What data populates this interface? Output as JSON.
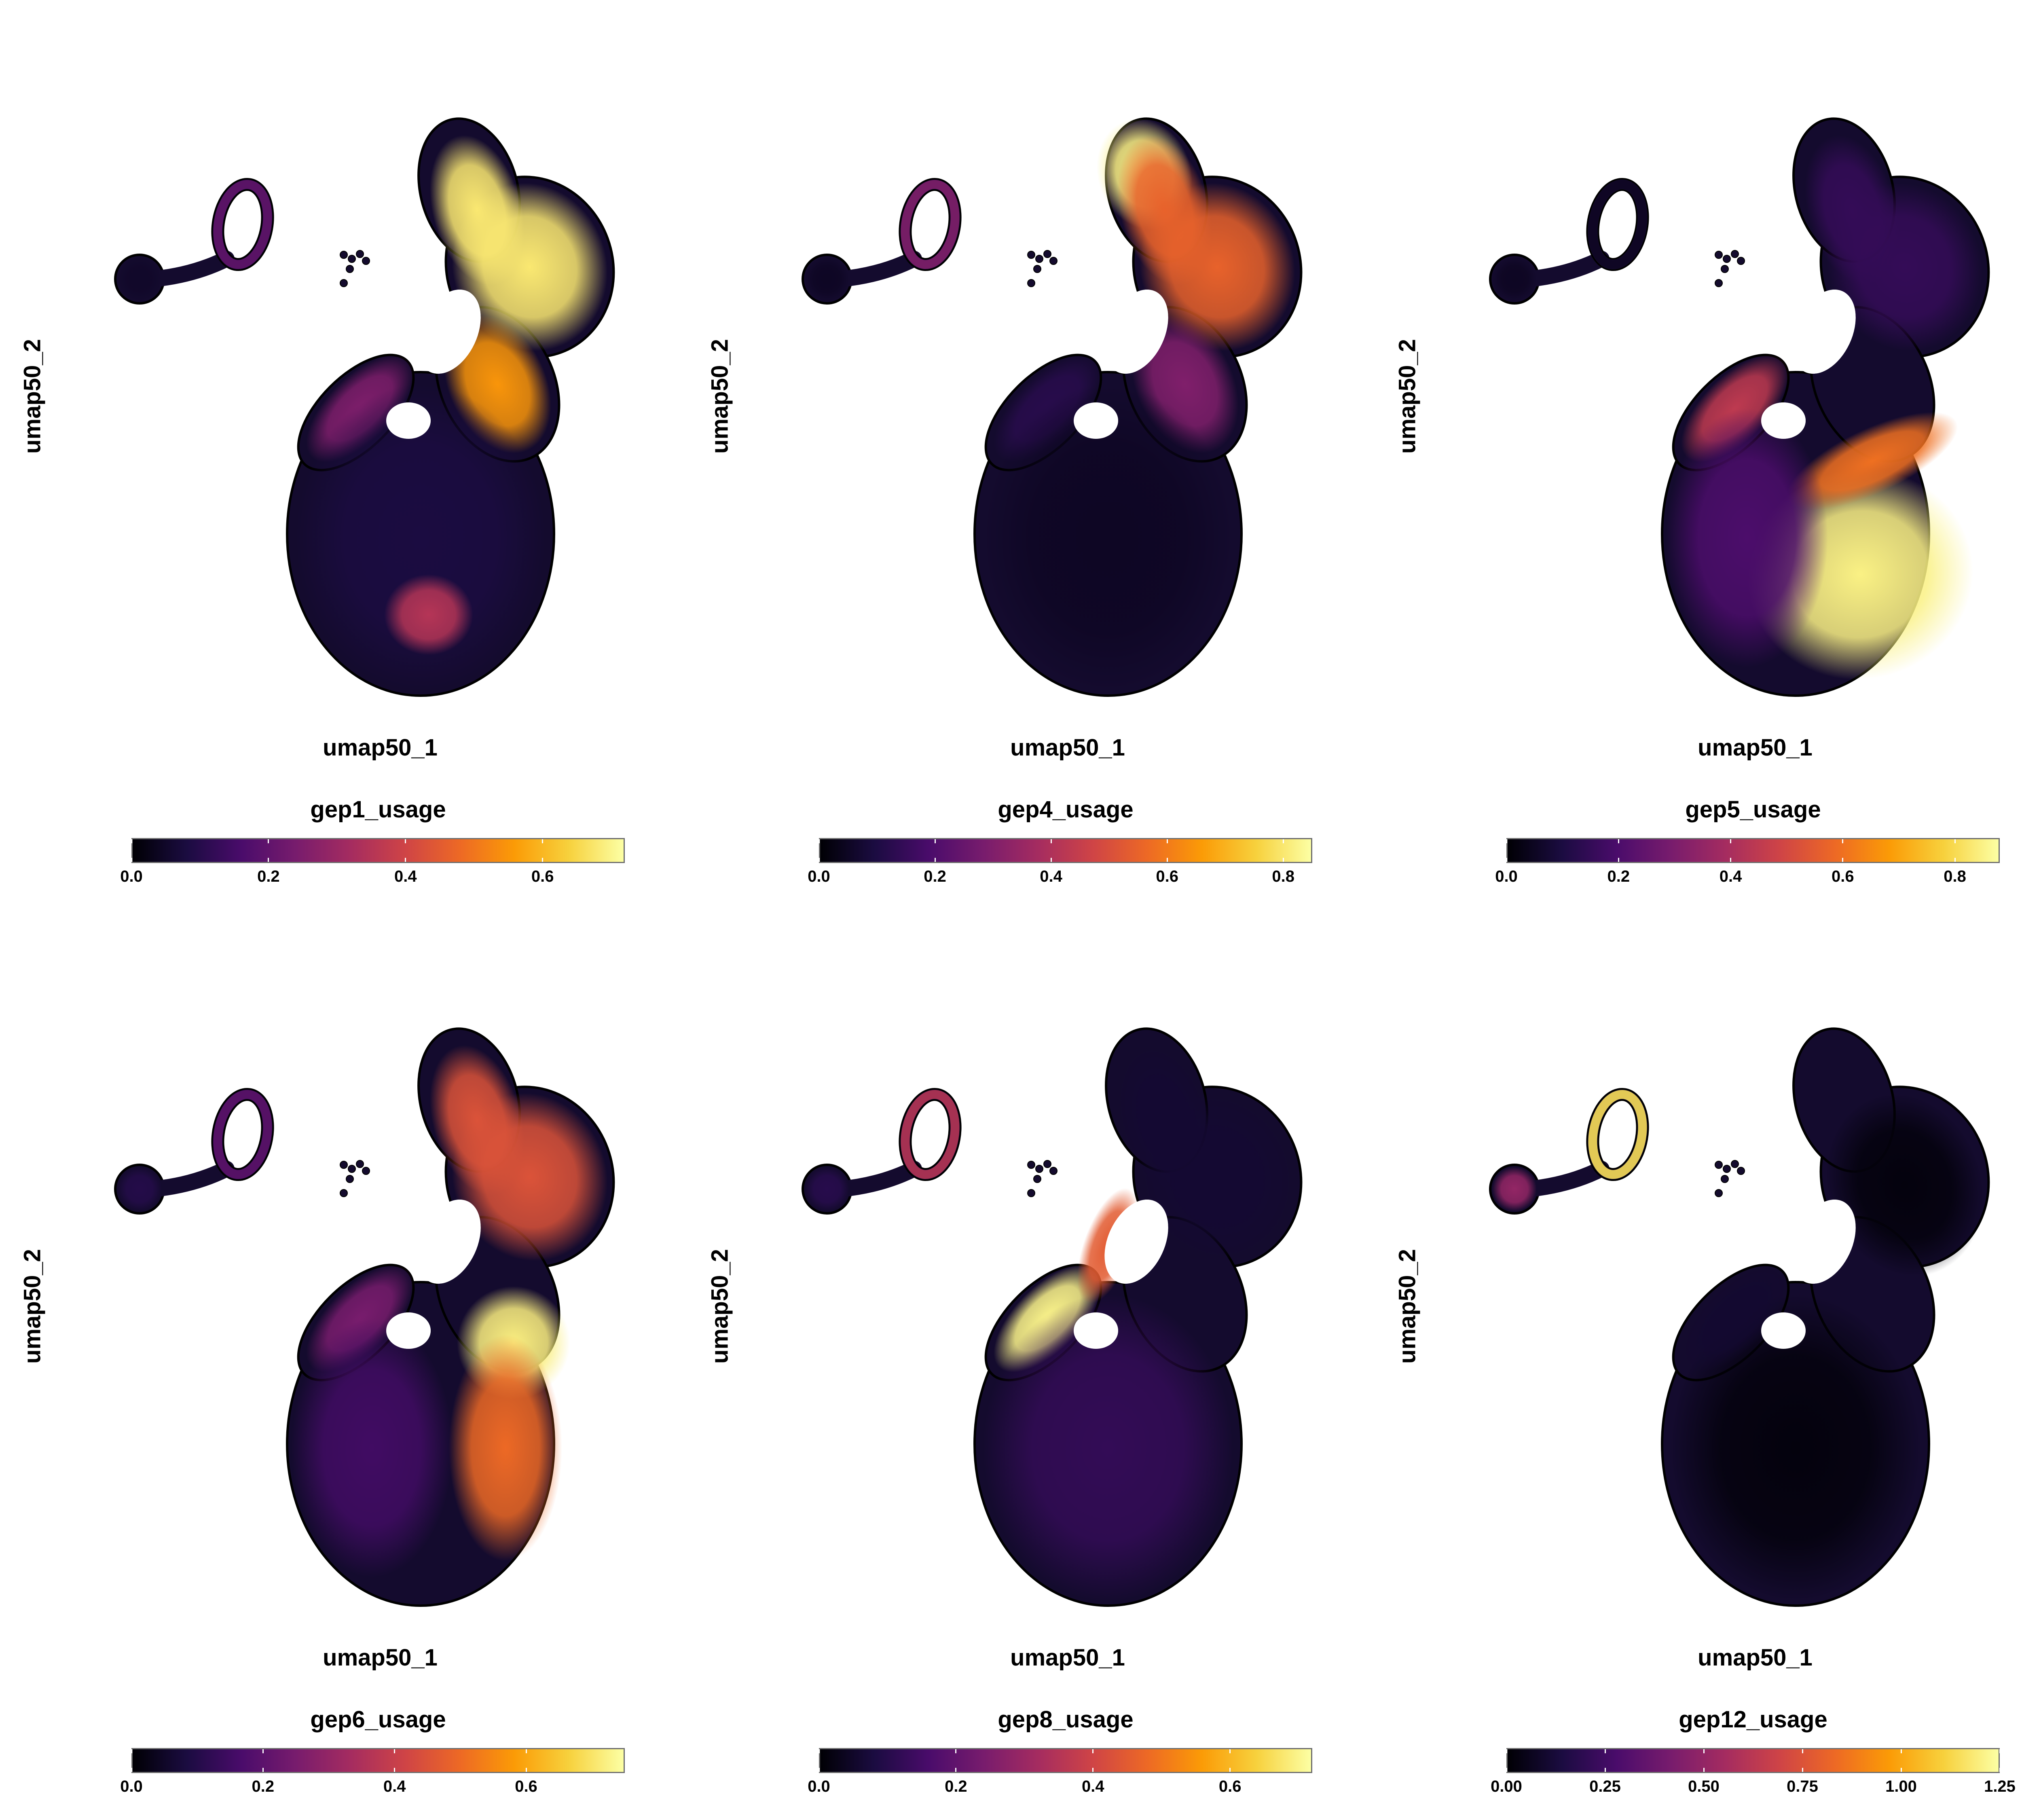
{
  "colormap": {
    "name": "inferno",
    "stops": [
      "#000004",
      "#1b0c41",
      "#4a0c6b",
      "#781c6d",
      "#a52c60",
      "#cf4446",
      "#ed6925",
      "#fb9b06",
      "#f7d13d",
      "#fcffa4"
    ]
  },
  "chart_data": [
    {
      "type": "scatter",
      "title": "",
      "xlabel": "umap50_1",
      "ylabel": "umap50_2",
      "colorbar_title": "gep1_usage",
      "color_range": [
        0,
        0.72
      ],
      "colorbar_ticks": [
        "0.0",
        "0.2",
        "0.4",
        "0.6"
      ],
      "colorbar_tick_values": [
        0.0,
        0.2,
        0.4,
        0.6
      ],
      "grid": false,
      "legend_position": "bottom",
      "regions": [
        {
          "region": "upper-right lobe",
          "usage": 0.68
        },
        {
          "region": "upper lobe neck",
          "usage": 0.55
        },
        {
          "region": "left arm",
          "usage": 0.25
        },
        {
          "region": "lower body",
          "usage": 0.08
        },
        {
          "region": "bottom tip",
          "usage": 0.35
        },
        {
          "region": "small ring cluster",
          "usage": 0.2
        },
        {
          "region": "round cluster",
          "usage": 0.05
        }
      ]
    },
    {
      "type": "scatter",
      "title": "",
      "xlabel": "umap50_1",
      "ylabel": "umap50_2",
      "colorbar_title": "gep4_usage",
      "color_range": [
        0,
        0.85
      ],
      "colorbar_ticks": [
        "0.0",
        "0.2",
        "0.4",
        "0.6",
        "0.8"
      ],
      "colorbar_tick_values": [
        0.0,
        0.2,
        0.4,
        0.6,
        0.8
      ],
      "grid": false,
      "legend_position": "bottom",
      "regions": [
        {
          "region": "upper-left tip",
          "usage": 0.82
        },
        {
          "region": "upper-right lobe",
          "usage": 0.55
        },
        {
          "region": "upper lobe neck",
          "usage": 0.3
        },
        {
          "region": "left arm",
          "usage": 0.12
        },
        {
          "region": "lower body",
          "usage": 0.05
        },
        {
          "region": "small ring cluster",
          "usage": 0.3
        },
        {
          "region": "round cluster",
          "usage": 0.05
        }
      ]
    },
    {
      "type": "scatter",
      "title": "",
      "xlabel": "umap50_1",
      "ylabel": "umap50_2",
      "colorbar_title": "gep5_usage",
      "color_range": [
        0,
        0.88
      ],
      "colorbar_ticks": [
        "0.0",
        "0.2",
        "0.4",
        "0.6",
        "0.8"
      ],
      "colorbar_tick_values": [
        0.0,
        0.2,
        0.4,
        0.6,
        0.8
      ],
      "grid": false,
      "legend_position": "bottom",
      "regions": [
        {
          "region": "lower-right body",
          "usage": 0.85
        },
        {
          "region": "middle band",
          "usage": 0.6
        },
        {
          "region": "left arm",
          "usage": 0.45
        },
        {
          "region": "upper-right lobe",
          "usage": 0.15
        },
        {
          "region": "lower-left body",
          "usage": 0.2
        },
        {
          "region": "small ring cluster",
          "usage": 0.05
        },
        {
          "region": "round cluster",
          "usage": 0.05
        }
      ]
    },
    {
      "type": "scatter",
      "title": "",
      "xlabel": "umap50_1",
      "ylabel": "umap50_2",
      "colorbar_title": "gep6_usage",
      "color_range": [
        0,
        0.75
      ],
      "colorbar_ticks": [
        "0.0",
        "0.2",
        "0.4",
        "0.6"
      ],
      "colorbar_tick_values": [
        0.0,
        0.2,
        0.4,
        0.6
      ],
      "grid": false,
      "legend_position": "bottom",
      "regions": [
        {
          "region": "middle-right core",
          "usage": 0.72
        },
        {
          "region": "upper-right lobe",
          "usage": 0.45
        },
        {
          "region": "right side of body",
          "usage": 0.5
        },
        {
          "region": "left arm",
          "usage": 0.25
        },
        {
          "region": "lower-left body",
          "usage": 0.15
        },
        {
          "region": "small ring cluster",
          "usage": 0.2
        },
        {
          "region": "round cluster",
          "usage": 0.1
        }
      ]
    },
    {
      "type": "scatter",
      "title": "",
      "xlabel": "umap50_1",
      "ylabel": "umap50_2",
      "colorbar_title": "gep8_usage",
      "color_range": [
        0,
        0.72
      ],
      "colorbar_ticks": [
        "0.0",
        "0.2",
        "0.4",
        "0.6"
      ],
      "colorbar_tick_values": [
        0.0,
        0.2,
        0.4,
        0.6
      ],
      "grid": false,
      "legend_position": "bottom",
      "regions": [
        {
          "region": "left arm",
          "usage": 0.7
        },
        {
          "region": "arm connector",
          "usage": 0.45
        },
        {
          "region": "lower body",
          "usage": 0.12
        },
        {
          "region": "upper-right lobe",
          "usage": 0.06
        },
        {
          "region": "small ring cluster",
          "usage": 0.35
        },
        {
          "region": "round cluster",
          "usage": 0.1
        }
      ]
    },
    {
      "type": "scatter",
      "title": "",
      "xlabel": "umap50_1",
      "ylabel": "umap50_2",
      "colorbar_title": "gep12_usage",
      "color_range": [
        0,
        1.25
      ],
      "colorbar_ticks": [
        "0.00",
        "0.25",
        "0.50",
        "0.75",
        "1.00",
        "1.25"
      ],
      "colorbar_tick_values": [
        0.0,
        0.25,
        0.5,
        0.75,
        1.0,
        1.25
      ],
      "grid": false,
      "legend_position": "bottom",
      "regions": [
        {
          "region": "small ring cluster",
          "usage": 1.15
        },
        {
          "region": "round cluster",
          "usage": 0.5
        },
        {
          "region": "main body",
          "usage": 0.02
        },
        {
          "region": "left arm",
          "usage": 0.1
        }
      ]
    }
  ]
}
